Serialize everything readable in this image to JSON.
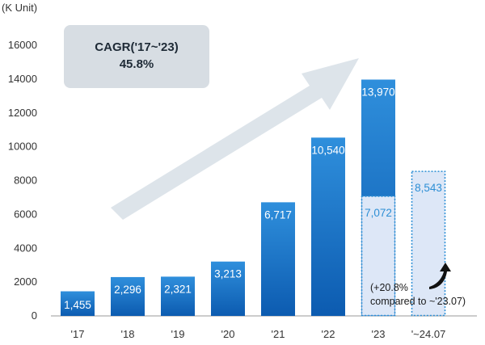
{
  "chart_data": {
    "type": "bar",
    "unit_label": "(K Unit)",
    "categories": [
      "'17",
      "'18",
      "'19",
      "'20",
      "'21",
      "'22",
      "'23",
      "'~24.07"
    ],
    "series": [
      {
        "values": [
          1455,
          2296,
          2321,
          3213,
          6717,
          10540,
          13970,
          null
        ],
        "labels": [
          "1,455",
          "2,296",
          "2,321",
          "3,213",
          "6,717",
          "10,540",
          "13,970",
          ""
        ]
      },
      {
        "values": [
          null,
          null,
          null,
          null,
          null,
          null,
          7072,
          8543
        ],
        "labels": [
          "",
          "",
          "",
          "",
          "",
          "",
          "7,072",
          "8,543"
        ]
      }
    ],
    "ylim": [
      0,
      16000
    ],
    "yticks": [
      0,
      2000,
      4000,
      6000,
      8000,
      10000,
      12000,
      14000,
      16000
    ],
    "grid": false,
    "annotations": {
      "cagr_line1": "CAGR('17~'23)",
      "cagr_line2": "45.8%",
      "growth_line1": "(+20.8%",
      "growth_line2": "compared to ~'23.07)"
    },
    "colors": {
      "bar_top": "#2f8fdc",
      "bar_bottom": "#0c5bb0",
      "partial_fill": "#dde7f7",
      "partial_border": "#2d8fd5",
      "partial_label": "#2d8fd5",
      "cagr_box": "#d7dde3",
      "arrow": "#dde4ea"
    }
  }
}
